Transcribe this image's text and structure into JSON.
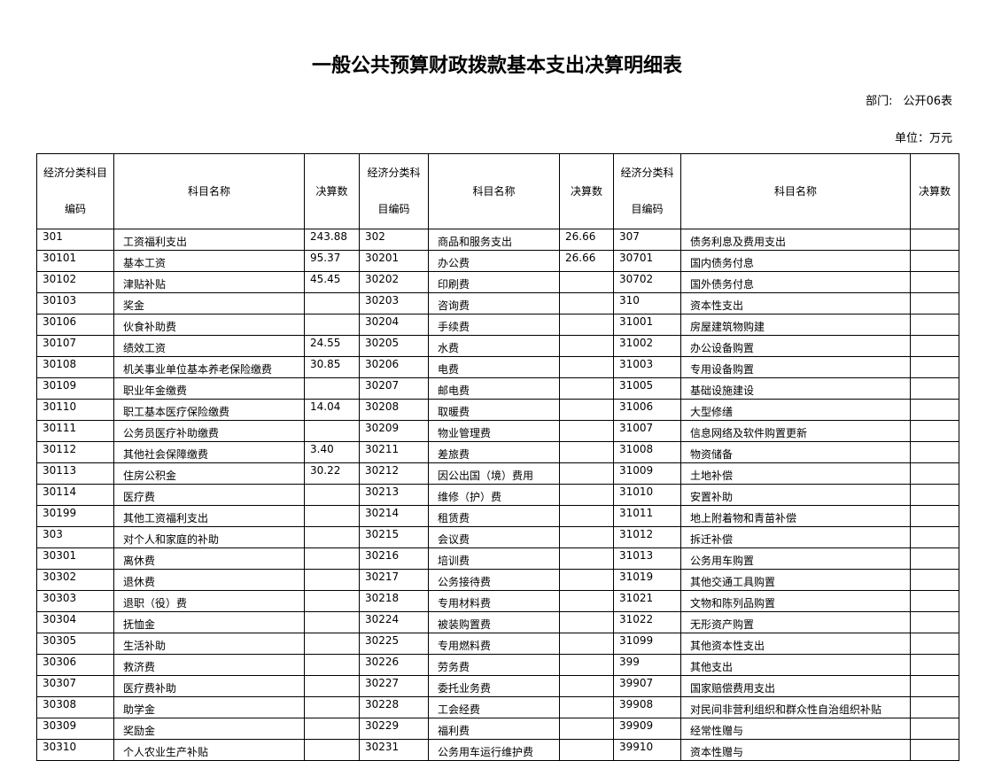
{
  "header": {
    "title": "一般公共预算财政拨款基本支出决算明细表",
    "dept": "部门:",
    "form_no": "公开06表",
    "unit": "单位：万元"
  },
  "table": {
    "columns": [
      "经济分类科目编码",
      "科目名称",
      "决算数",
      "经济分类科目编码",
      "科目名称",
      "决算数",
      "经济分类科目编码",
      "科目名称",
      "决算数"
    ],
    "rows": [
      [
        "301",
        "工资福利支出",
        "243.88",
        "302",
        "商品和服务支出",
        "26.66",
        "307",
        "债务利息及费用支出",
        null
      ],
      [
        "30101",
        "基本工资",
        "95.37",
        "30201",
        "办公费",
        "26.66",
        "30701",
        "国内债务付息",
        null
      ],
      [
        "30102",
        "津贴补贴",
        "45.45",
        "30202",
        "印刷费",
        null,
        "30702",
        "国外债务付息",
        null
      ],
      [
        "30103",
        "奖金",
        null,
        "30203",
        "咨询费",
        null,
        "310",
        "资本性支出",
        null
      ],
      [
        "30106",
        "伙食补助费",
        null,
        "30204",
        "手续费",
        null,
        "31001",
        "房屋建筑物购建",
        null
      ],
      [
        "30107",
        "绩效工资",
        "24.55",
        "30205",
        "水费",
        null,
        "31002",
        "办公设备购置",
        null
      ],
      [
        "30108",
        "机关事业单位基本养老保险缴费",
        "30.85",
        "30206",
        "电费",
        null,
        "31003",
        "专用设备购置",
        null
      ],
      [
        "30109",
        "职业年金缴费",
        null,
        "30207",
        "邮电费",
        null,
        "31005",
        "基础设施建设",
        null
      ],
      [
        "30110",
        "职工基本医疗保险缴费",
        "14.04",
        "30208",
        "取暖费",
        null,
        "31006",
        "大型修缮",
        null
      ],
      [
        "30111",
        "公务员医疗补助缴费",
        null,
        "30209",
        "物业管理费",
        null,
        "31007",
        "信息网络及软件购置更新",
        null
      ],
      [
        "30112",
        "其他社会保障缴费",
        "3.40",
        "30211",
        "差旅费",
        null,
        "31008",
        "物资储备",
        null
      ],
      [
        "30113",
        "住房公积金",
        "30.22",
        "30212",
        "因公出国（境）费用",
        null,
        "31009",
        "土地补偿",
        null
      ],
      [
        "30114",
        "医疗费",
        null,
        "30213",
        "维修（护）费",
        null,
        "31010",
        "安置补助",
        null
      ],
      [
        "30199",
        "其他工资福利支出",
        null,
        "30214",
        "租赁费",
        null,
        "31011",
        "地上附着物和青苗补偿",
        null
      ],
      [
        "303",
        "对个人和家庭的补助",
        null,
        "30215",
        "会议费",
        null,
        "31012",
        "拆迁补偿",
        null
      ],
      [
        "30301",
        "离休费",
        null,
        "30216",
        "培训费",
        null,
        "31013",
        "公务用车购置",
        null
      ],
      [
        "30302",
        "退休费",
        null,
        "30217",
        "公务接待费",
        null,
        "31019",
        "其他交通工具购置",
        null
      ],
      [
        "30303",
        "退职（役）费",
        null,
        "30218",
        "专用材料费",
        null,
        "31021",
        "文物和陈列品购置",
        null
      ],
      [
        "30304",
        "抚恤金",
        null,
        "30224",
        "被装购置费",
        null,
        "31022",
        "无形资产购置",
        null
      ],
      [
        "30305",
        "生活补助",
        null,
        "30225",
        "专用燃料费",
        null,
        "31099",
        "其他资本性支出",
        null
      ],
      [
        "30306",
        "救济费",
        null,
        "30226",
        "劳务费",
        null,
        "399",
        "其他支出",
        null
      ],
      [
        "30307",
        "医疗费补助",
        null,
        "30227",
        "委托业务费",
        null,
        "39907",
        "国家赔偿费用支出",
        null
      ],
      [
        "30308",
        "助学金",
        null,
        "30228",
        "工会经费",
        null,
        "39908",
        "对民间非营利组织和群众性自治组织补贴",
        null
      ],
      [
        "30309",
        "奖励金",
        null,
        "30229",
        "福利费",
        null,
        "39909",
        "经常性赠与",
        null
      ],
      [
        "30310",
        "个人农业生产补贴",
        null,
        "30231",
        "公务用车运行维护费",
        null,
        "39910",
        "资本性赠与",
        null
      ]
    ]
  }
}
